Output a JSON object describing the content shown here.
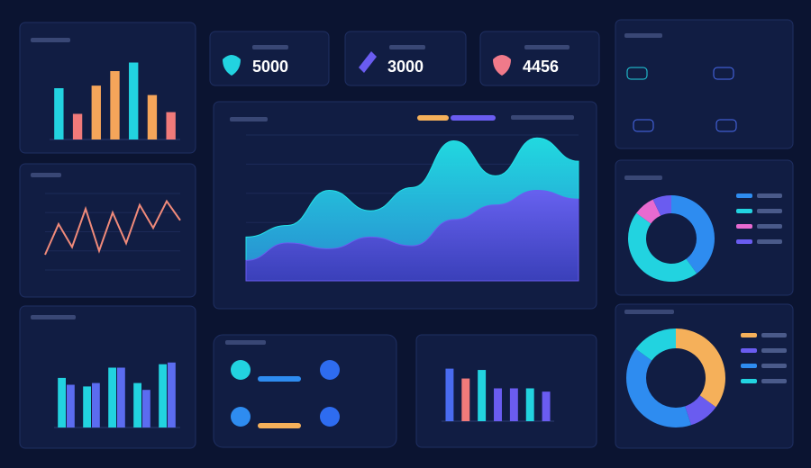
{
  "stat_cards": [
    {
      "value": 5000
    },
    {
      "value": 3000
    },
    {
      "value": 4456
    }
  ],
  "chart_data": [
    {
      "type": "bar",
      "categories": [
        null,
        null,
        null,
        null,
        null,
        null,
        null
      ],
      "values": [
        60,
        30,
        63,
        80,
        90,
        52,
        32
      ],
      "colors": [
        "#22d3e0",
        "#f07a7a",
        "#f5a55a",
        "#f5a55a",
        "#22d3e0",
        "#f5a55a",
        "#f07a7a"
      ],
      "ylim": [
        0,
        100
      ]
    },
    {
      "type": "line",
      "categories": [
        null,
        null,
        null,
        null,
        null,
        null,
        null,
        null,
        null,
        null,
        null
      ],
      "values": [
        20,
        60,
        30,
        80,
        25,
        75,
        35,
        85,
        55,
        90,
        65
      ],
      "color": "#f08a7a",
      "ylim": [
        0,
        100
      ]
    },
    {
      "type": "bar",
      "categories": [
        null,
        null,
        null,
        null,
        null
      ],
      "series": [
        {
          "color": "#22d3e0",
          "values": [
            58,
            48,
            70,
            52,
            74
          ]
        },
        {
          "color": "#5b6cf0",
          "values": [
            50,
            52,
            70,
            44,
            76
          ]
        }
      ],
      "ylim": [
        0,
        100
      ]
    },
    {
      "type": "area",
      "categories": [
        null,
        null,
        null,
        null,
        null,
        null,
        null,
        null,
        null
      ],
      "series": [
        {
          "color": "#22e3e8",
          "values": [
            30,
            38,
            62,
            48,
            64,
            96,
            72,
            98,
            82
          ]
        },
        {
          "color": "#6a5cf0",
          "values": [
            14,
            26,
            22,
            30,
            24,
            42,
            52,
            62,
            56
          ]
        }
      ],
      "ylim": [
        0,
        100
      ]
    },
    {
      "type": "pie",
      "donut": true,
      "values": [
        40,
        45,
        8,
        7
      ],
      "colors": [
        "#2e8cf0",
        "#22d3e0",
        "#e86ad0",
        "#6a5cf0"
      ]
    },
    {
      "type": "pie",
      "donut": true,
      "values": [
        35,
        10,
        40,
        15
      ],
      "colors": [
        "#f5b05a",
        "#6a5cf0",
        "#2e8cf0",
        "#22d3e0"
      ]
    },
    {
      "type": "bar",
      "categories": [
        null,
        null,
        null,
        null,
        null,
        null,
        null
      ],
      "values": [
        80,
        65,
        78,
        50,
        50,
        50,
        45
      ],
      "colors": [
        "#4a6cf0",
        "#f07a7a",
        "#22d3e0",
        "#6a5cf0",
        "#6a5cf0",
        "#22d3e0",
        "#6a5cf0"
      ],
      "ylim": [
        0,
        100
      ]
    }
  ]
}
